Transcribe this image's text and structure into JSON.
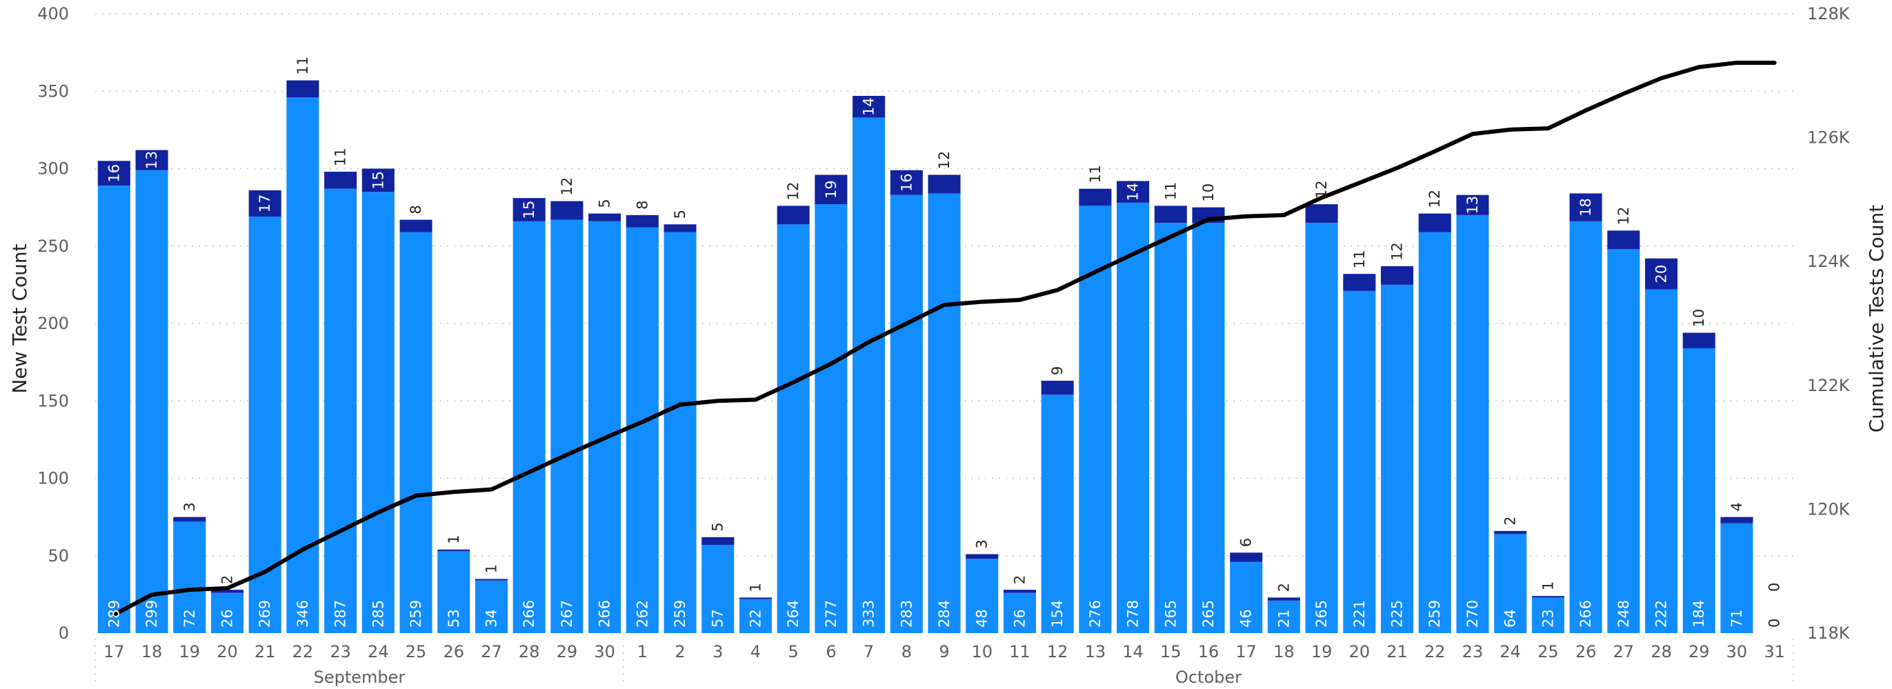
{
  "chart_data": {
    "type": "bar",
    "stacked": true,
    "ylabel": "New Test Count",
    "y2label": "Cumulative Tests Count",
    "ylim": [
      0,
      400
    ],
    "yticks": [
      "0",
      "50",
      "100",
      "150",
      "200",
      "250",
      "300",
      "350",
      "400"
    ],
    "y2lim": [
      118000,
      128000
    ],
    "y2ticks": [
      "118K",
      "120K",
      "122K",
      "124K",
      "126K",
      "128K"
    ],
    "grid": true,
    "months": [
      {
        "label": "September",
        "start": 0,
        "end": 13
      },
      {
        "label": "October",
        "start": 14,
        "end": 44
      }
    ],
    "categories": [
      "17",
      "18",
      "19",
      "20",
      "21",
      "22",
      "23",
      "24",
      "25",
      "26",
      "27",
      "28",
      "29",
      "30",
      "1",
      "2",
      "3",
      "4",
      "5",
      "6",
      "7",
      "8",
      "9",
      "10",
      "11",
      "12",
      "13",
      "14",
      "15",
      "16",
      "17",
      "18",
      "19",
      "20",
      "21",
      "22",
      "23",
      "24",
      "25",
      "26",
      "27",
      "28",
      "29",
      "30",
      "31"
    ],
    "series": [
      {
        "color": "#118dff",
        "values": [
          289,
          299,
          72,
          26,
          269,
          346,
          287,
          285,
          259,
          53,
          34,
          266,
          267,
          266,
          262,
          259,
          57,
          22,
          264,
          277,
          333,
          283,
          284,
          48,
          26,
          154,
          276,
          278,
          265,
          265,
          46,
          21,
          265,
          221,
          225,
          259,
          270,
          64,
          23,
          266,
          248,
          222,
          184,
          71,
          0
        ]
      },
      {
        "color": "#12239e",
        "values": [
          16,
          13,
          3,
          2,
          17,
          11,
          11,
          15,
          8,
          1,
          1,
          15,
          12,
          5,
          8,
          5,
          5,
          1,
          12,
          19,
          14,
          16,
          12,
          3,
          2,
          9,
          11,
          14,
          11,
          10,
          6,
          2,
          12,
          11,
          12,
          12,
          13,
          2,
          1,
          18,
          12,
          20,
          10,
          4,
          0
        ]
      }
    ],
    "line": {
      "color": "#000000",
      "values": [
        118300,
        118620,
        118700,
        118725,
        118990,
        119350,
        119650,
        119950,
        120220,
        120280,
        120320,
        120600,
        120880,
        121150,
        121410,
        121690,
        121750,
        121770,
        122050,
        122350,
        122700,
        123000,
        123300,
        123350,
        123380,
        123540,
        123830,
        124120,
        124400,
        124680,
        124730,
        124750,
        125030,
        125270,
        125510,
        125780,
        126060,
        126130,
        126150,
        126440,
        126710,
        126960,
        127140,
        127210,
        127210
      ]
    },
    "colors": {
      "primary": "#118dff",
      "secondary": "#12239e",
      "line": "#000000"
    }
  }
}
